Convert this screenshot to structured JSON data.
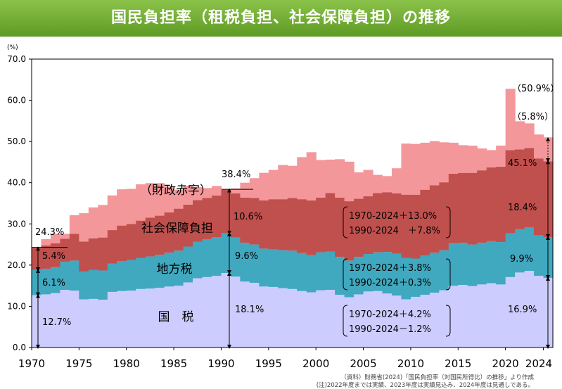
{
  "title": "国民負担率（租税負担、社会保障負担）の推移",
  "chart_data": {
    "type": "area",
    "unit_label": "(%)",
    "ylim": [
      0,
      70
    ],
    "yticks": [
      "0.0",
      "10.0",
      "20.0",
      "30.0",
      "40.0",
      "50.0",
      "60.0",
      "70.0"
    ],
    "xticks": [
      "1970",
      "1975",
      "1980",
      "1985",
      "1990",
      "1995",
      "2000",
      "2005",
      "2010",
      "2015",
      "2020",
      "2024"
    ],
    "years": [
      1970,
      1971,
      1972,
      1973,
      1974,
      1975,
      1976,
      1977,
      1978,
      1979,
      1980,
      1981,
      1982,
      1983,
      1984,
      1985,
      1986,
      1987,
      1988,
      1989,
      1990,
      1991,
      1992,
      1993,
      1994,
      1995,
      1996,
      1997,
      1998,
      1999,
      2000,
      2001,
      2002,
      2003,
      2004,
      2005,
      2006,
      2007,
      2008,
      2009,
      2010,
      2011,
      2012,
      2013,
      2014,
      2015,
      2016,
      2017,
      2018,
      2019,
      2020,
      2021,
      2022,
      2023,
      2024
    ],
    "series": [
      {
        "name": "国税",
        "color": "#ccccff",
        "values": [
          12.7,
          12.9,
          13.2,
          14.0,
          13.8,
          11.7,
          11.8,
          11.6,
          13.5,
          13.7,
          13.8,
          14.2,
          14.3,
          14.5,
          14.8,
          15.0,
          15.8,
          16.8,
          17.1,
          17.4,
          18.1,
          17.2,
          16.0,
          15.7,
          14.8,
          14.7,
          14.4,
          14.2,
          13.7,
          13.4,
          13.9,
          14.0,
          12.8,
          12.2,
          12.9,
          13.6,
          13.7,
          13.1,
          12.6,
          11.7,
          12.3,
          12.8,
          13.3,
          13.9,
          15.0,
          15.2,
          14.9,
          15.3,
          15.6,
          15.3,
          17.1,
          18.2,
          18.6,
          17.4,
          16.9
        ]
      },
      {
        "name": "地方税",
        "color": "#40a8bf",
        "values": [
          6.1,
          6.2,
          6.3,
          6.8,
          7.3,
          6.7,
          7.0,
          7.1,
          6.9,
          7.3,
          7.4,
          7.5,
          7.8,
          8.0,
          8.2,
          8.5,
          8.7,
          8.9,
          9.2,
          9.4,
          9.6,
          9.5,
          9.4,
          9.3,
          9.2,
          9.1,
          9.2,
          9.3,
          9.2,
          9.0,
          9.2,
          9.3,
          9.2,
          8.9,
          9.1,
          9.1,
          9.4,
          10.1,
          10.2,
          10.0,
          9.3,
          9.5,
          9.7,
          9.7,
          10.3,
          10.2,
          10.1,
          10.1,
          10.2,
          10.3,
          10.6,
          10.5,
          10.6,
          9.8,
          9.9
        ]
      },
      {
        "name": "社会保障負担",
        "color": "#c0504d",
        "values": [
          5.4,
          5.7,
          5.8,
          5.6,
          6.5,
          7.3,
          7.7,
          8.0,
          8.1,
          8.6,
          8.8,
          9.1,
          9.4,
          9.5,
          9.8,
          10.2,
          10.2,
          10.1,
          10.0,
          10.1,
          10.6,
          10.7,
          11.0,
          11.3,
          11.7,
          12.2,
          12.4,
          12.8,
          13.1,
          13.3,
          13.3,
          14.2,
          14.4,
          14.4,
          14.1,
          14.0,
          14.4,
          14.5,
          14.6,
          15.4,
          15.5,
          16.0,
          16.4,
          16.5,
          16.9,
          17.0,
          17.4,
          17.6,
          17.9,
          18.3,
          20.2,
          19.4,
          19.2,
          18.7,
          18.4
        ]
      },
      {
        "name": "（財政赤字）",
        "color": "#f4979a",
        "values": [
          0.1,
          1.5,
          2.3,
          1.2,
          4.5,
          6.9,
          7.5,
          7.9,
          8.4,
          8.8,
          8.5,
          8.8,
          8.4,
          7.9,
          6.3,
          4.6,
          4.5,
          3.1,
          2.4,
          2.3,
          0.1,
          1.2,
          3.6,
          4.8,
          6.7,
          7.1,
          8.3,
          7.8,
          10.2,
          11.7,
          9.1,
          8.1,
          9.3,
          9.6,
          6.4,
          6.4,
          4.4,
          3.9,
          6.1,
          12.4,
          12.3,
          11.4,
          10.7,
          9.7,
          7.5,
          6.7,
          6.6,
          5.3,
          4.2,
          5.1,
          14.9,
          6.8,
          6.0,
          5.8,
          5.8
        ]
      }
    ],
    "annotations": [
      {
        "text": "24.3%",
        "where": "1970 total"
      },
      {
        "text": "38.4%",
        "where": "1990 total"
      },
      {
        "text": "（50.9%）",
        "where": "2024 total incl. deficit"
      },
      {
        "text": "（5.8%）",
        "where": "2024 deficit"
      },
      {
        "text": "45.1%",
        "where": "2024 total"
      },
      {
        "text": "5.4%",
        "where": "1970 social security"
      },
      {
        "text": "6.1%",
        "where": "1970 local tax"
      },
      {
        "text": "12.7%",
        "where": "1970 national tax"
      },
      {
        "text": "10.6%",
        "where": "1990 social security"
      },
      {
        "text": "9.6%",
        "where": "1990 local tax"
      },
      {
        "text": "18.1%",
        "where": "1990 national tax"
      },
      {
        "text": "18.4%",
        "where": "2024 social security"
      },
      {
        "text": "9.9%",
        "where": "2024 local tax"
      },
      {
        "text": "16.9%",
        "where": "2024 national tax"
      }
    ],
    "changes": {
      "social_security": [
        "1970-2024＋13.0%",
        "1990-2024　＋7.8%"
      ],
      "local_tax": [
        "1970-2024＋3.8%",
        "1990-2024＋0.3%"
      ],
      "national_tax": [
        "1970-2024＋4.2%",
        "1990-2024－1.2%"
      ]
    }
  },
  "notes": [
    "（資料）財務省(2024)「国民負担率（対国民所得比）の推移」より作成",
    "(注)2022年度までは実績、2023年度は実績見込み、2024年度は見通しである。"
  ]
}
